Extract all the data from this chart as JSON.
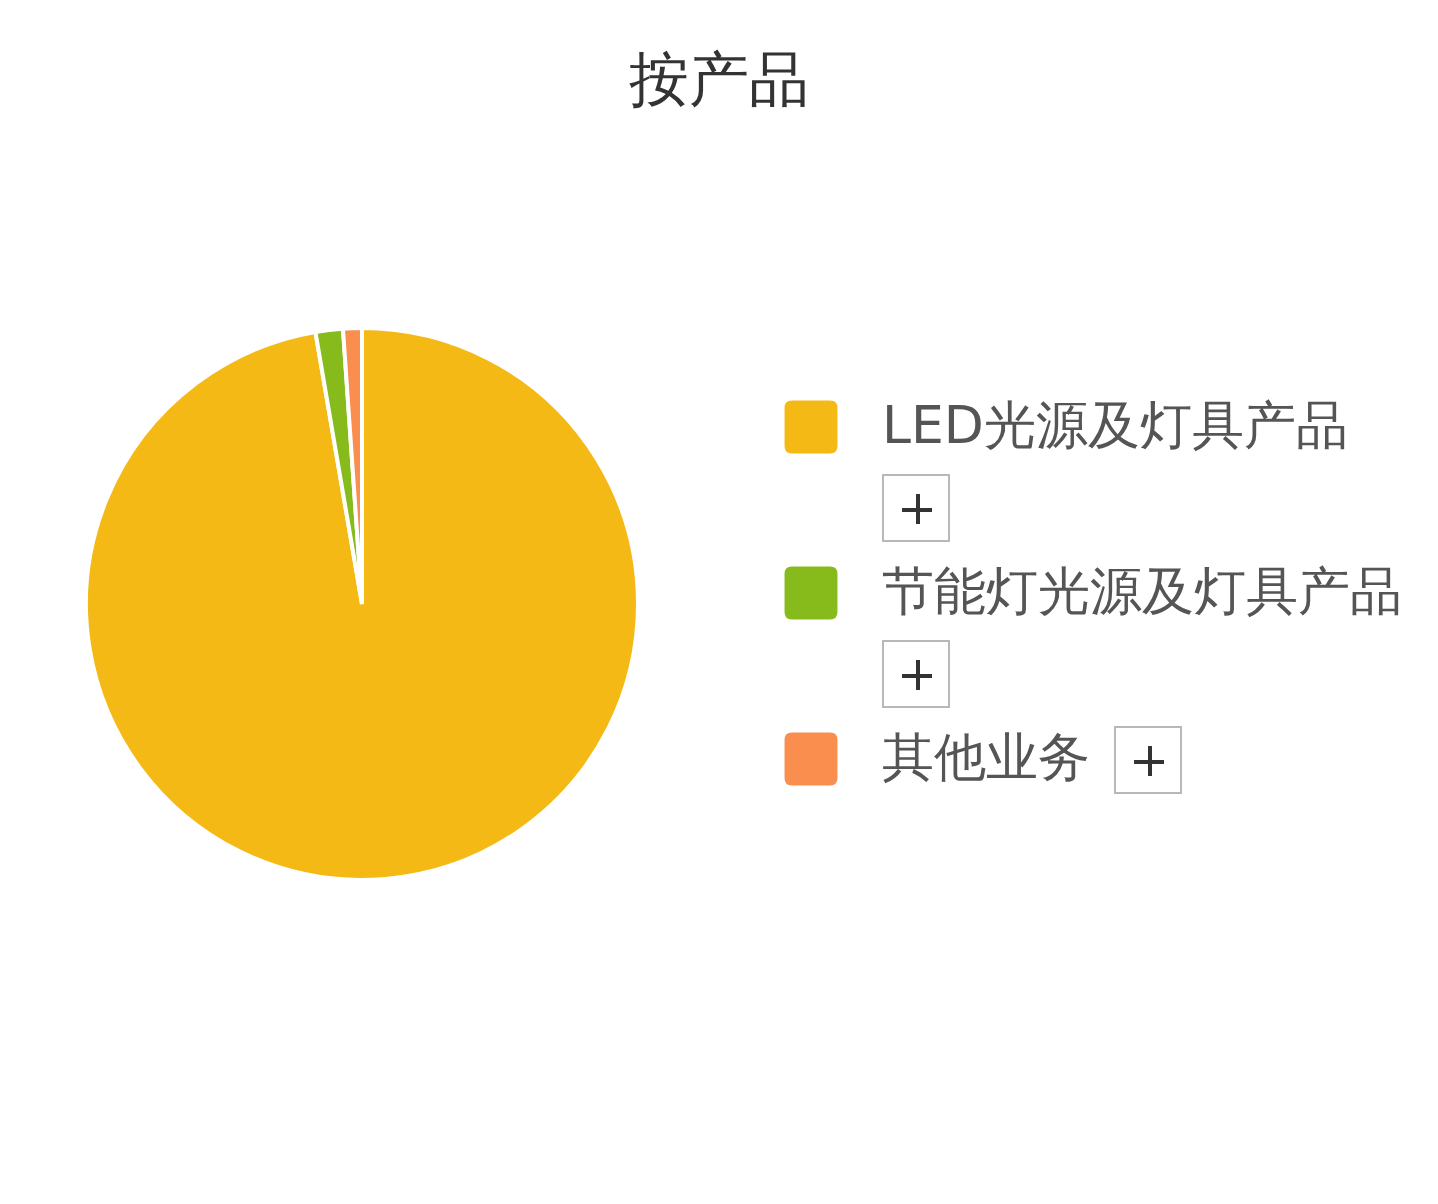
{
  "chart_data": {
    "type": "pie",
    "title": "按产品",
    "categories": [
      "LED光源及灯具产品",
      "节能灯光源及灯具产品",
      "其他业务"
    ],
    "values": [
      97.3,
      1.6,
      1.1
    ],
    "colors": [
      "#f4b915",
      "#86bb1b",
      "#f98e4f"
    ],
    "legend": "right"
  }
}
